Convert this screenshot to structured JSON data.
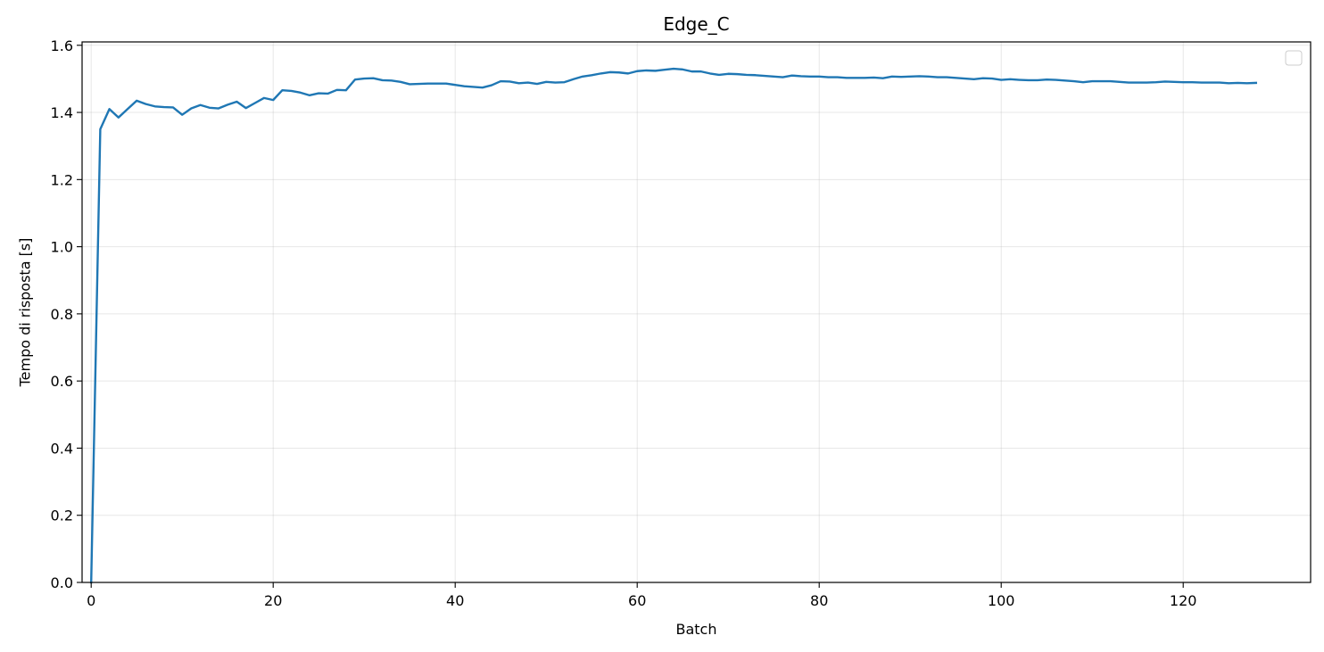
{
  "chart_data": {
    "type": "line",
    "title": "Edge_C",
    "xlabel": "Batch",
    "ylabel": "Tempo di risposta [s]",
    "xlim": [
      -1,
      134
    ],
    "ylim": [
      0,
      1.61
    ],
    "xticks": [
      0,
      20,
      40,
      60,
      80,
      100,
      120
    ],
    "xtick_labels": [
      "0",
      "20",
      "40",
      "60",
      "80",
      "100",
      "120"
    ],
    "yticks": [
      0.0,
      0.2,
      0.4,
      0.6,
      0.8,
      1.0,
      1.2,
      1.4,
      1.6
    ],
    "ytick_labels": [
      "0.0",
      "0.2",
      "0.4",
      "0.6",
      "0.8",
      "1.0",
      "1.2",
      "1.4",
      "1.6"
    ],
    "grid": true,
    "legend": "top-right (empty)",
    "line_color": "#1f77b4",
    "series": [
      {
        "x": [
          0,
          1,
          2,
          3,
          4,
          5,
          6,
          7,
          8,
          9,
          10,
          11,
          12,
          13,
          14,
          15,
          16,
          17,
          18,
          19,
          20,
          21,
          22,
          23,
          24,
          25,
          26,
          27,
          28,
          29,
          30,
          31,
          32,
          33,
          34,
          35,
          36,
          37,
          38,
          39,
          40,
          41,
          42,
          43,
          44,
          45,
          46,
          47,
          48,
          49,
          50,
          51,
          52,
          53,
          54,
          55,
          56,
          57,
          58,
          59,
          60,
          61,
          62,
          63,
          64,
          65,
          66,
          67,
          68,
          69,
          70,
          71,
          72,
          73,
          74,
          75,
          76,
          77,
          78,
          79,
          80,
          81,
          82,
          83,
          84,
          85,
          86,
          87,
          88,
          89,
          90,
          91,
          92,
          93,
          94,
          95,
          96,
          97,
          98,
          99,
          100,
          101,
          102,
          103,
          104,
          105,
          106,
          107,
          108,
          109,
          110,
          111,
          112,
          113,
          114,
          115,
          116,
          117,
          118,
          119,
          120,
          121,
          122,
          123,
          124,
          125,
          126,
          127,
          128
        ],
        "y": [
          0.0,
          1.35,
          1.41,
          1.385,
          1.41,
          1.435,
          1.425,
          1.418,
          1.416,
          1.415,
          1.393,
          1.412,
          1.422,
          1.414,
          1.412,
          1.423,
          1.432,
          1.413,
          1.428,
          1.443,
          1.437,
          1.466,
          1.464,
          1.459,
          1.451,
          1.457,
          1.456,
          1.467,
          1.466,
          1.498,
          1.501,
          1.502,
          1.496,
          1.495,
          1.491,
          1.484,
          1.485,
          1.486,
          1.486,
          1.486,
          1.482,
          1.478,
          1.476,
          1.474,
          1.481,
          1.493,
          1.492,
          1.487,
          1.489,
          1.485,
          1.491,
          1.489,
          1.49,
          1.499,
          1.507,
          1.511,
          1.516,
          1.52,
          1.519,
          1.516,
          1.523,
          1.525,
          1.524,
          1.527,
          1.53,
          1.528,
          1.522,
          1.522,
          1.516,
          1.512,
          1.515,
          1.514,
          1.512,
          1.511,
          1.509,
          1.507,
          1.505,
          1.51,
          1.508,
          1.507,
          1.507,
          1.505,
          1.505,
          1.503,
          1.503,
          1.503,
          1.504,
          1.502,
          1.507,
          1.506,
          1.507,
          1.508,
          1.507,
          1.505,
          1.505,
          1.503,
          1.501,
          1.499,
          1.502,
          1.501,
          1.497,
          1.499,
          1.497,
          1.496,
          1.496,
          1.498,
          1.497,
          1.495,
          1.493,
          1.49,
          1.493,
          1.493,
          1.493,
          1.491,
          1.489,
          1.489,
          1.489,
          1.49,
          1.492,
          1.491,
          1.49,
          1.49,
          1.489,
          1.489,
          1.489,
          1.487,
          1.488,
          1.487,
          1.488
        ]
      }
    ]
  }
}
